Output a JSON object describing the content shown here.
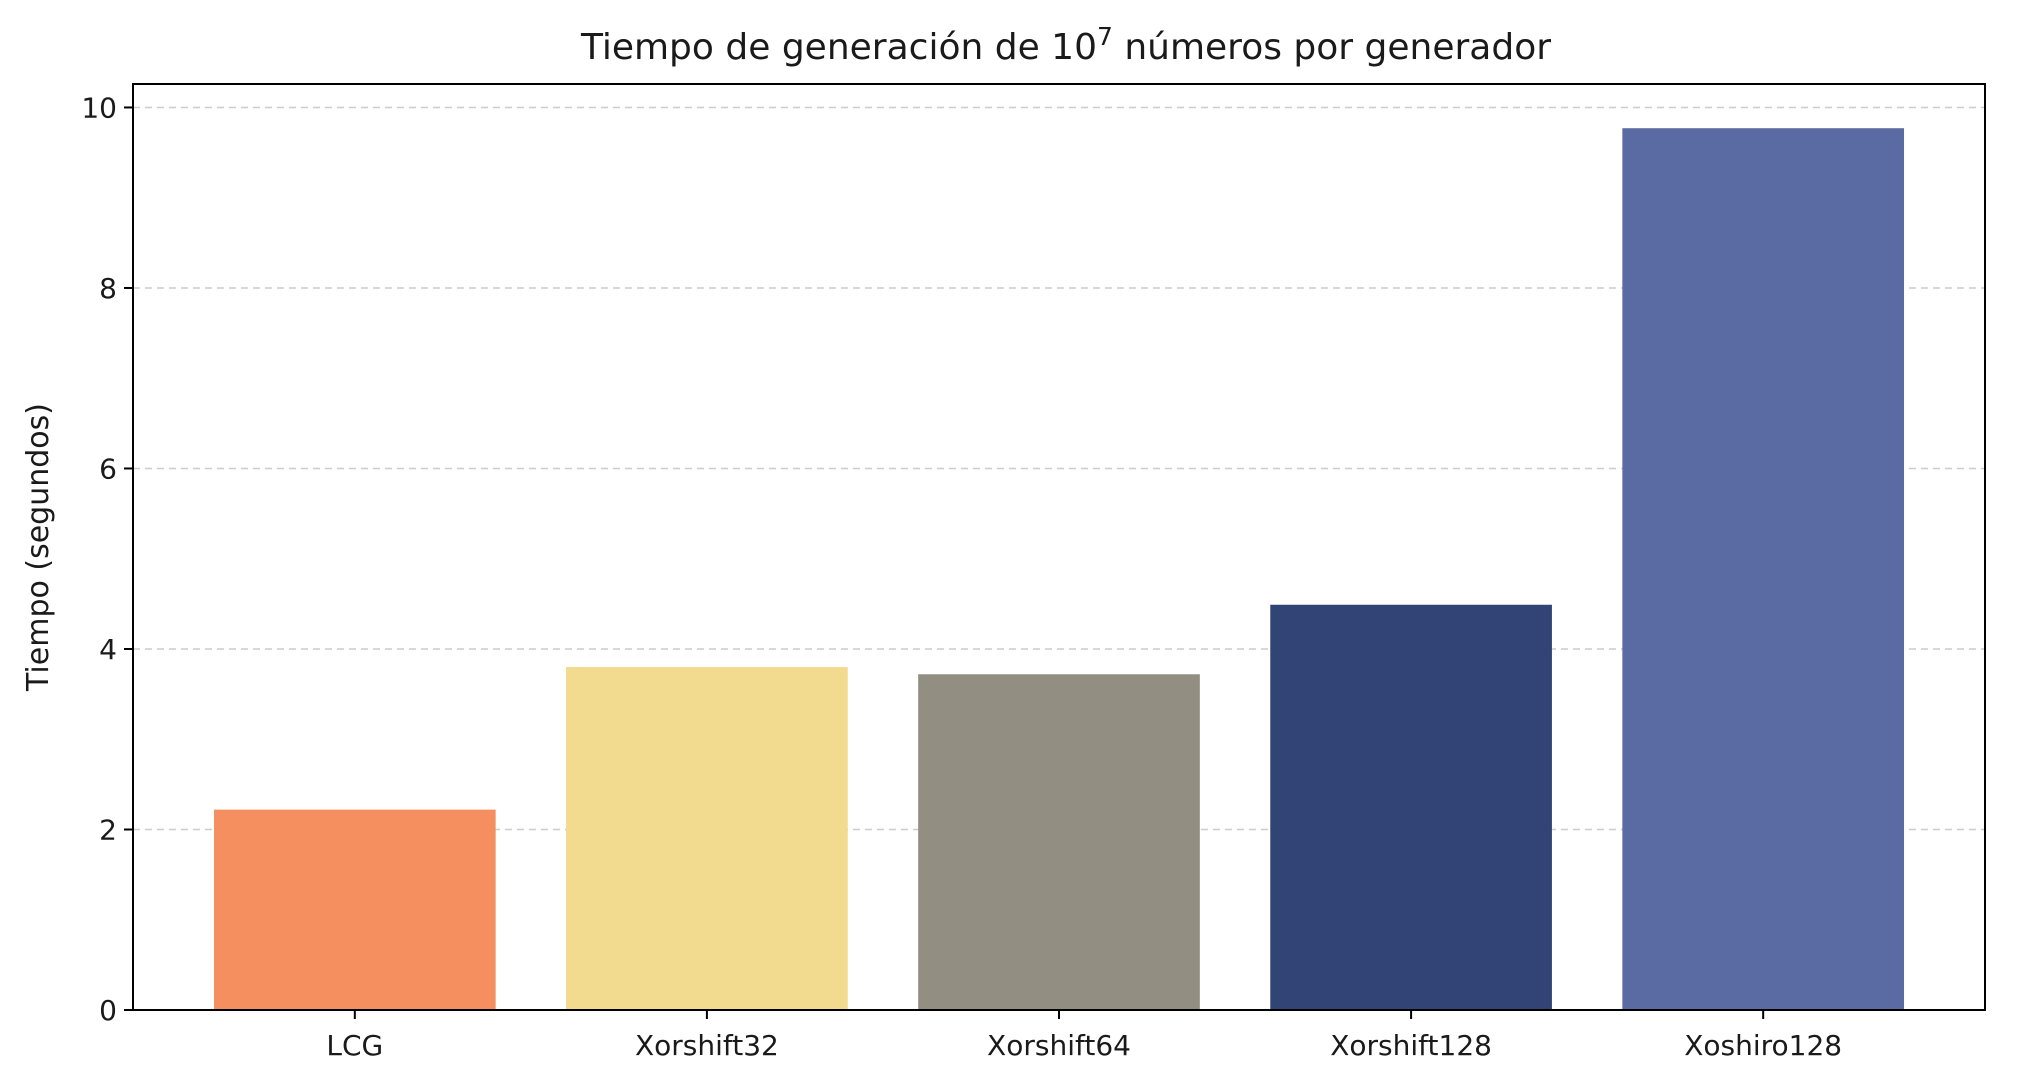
{
  "chart_data": {
    "type": "bar",
    "title": "Tiempo de generación de 10",
    "title_superscript": "7",
    "title_suffix": " números por generador",
    "xlabel": "",
    "ylabel": "Tiempo (segundos)",
    "categories": [
      "LCG",
      "Xorshift32",
      "Xorshift64",
      "Xorshift128",
      "Xoshiro128"
    ],
    "values": [
      2.22,
      3.8,
      3.72,
      4.49,
      9.77
    ],
    "colors": [
      "#f68f60",
      "#f2da8e",
      "#928f82",
      "#324475",
      "#5a6aa3"
    ],
    "ylim": [
      0,
      10.26
    ],
    "yticks": [
      0,
      2,
      4,
      6,
      8,
      10
    ],
    "grid": "y-dashed",
    "legend": "none"
  }
}
